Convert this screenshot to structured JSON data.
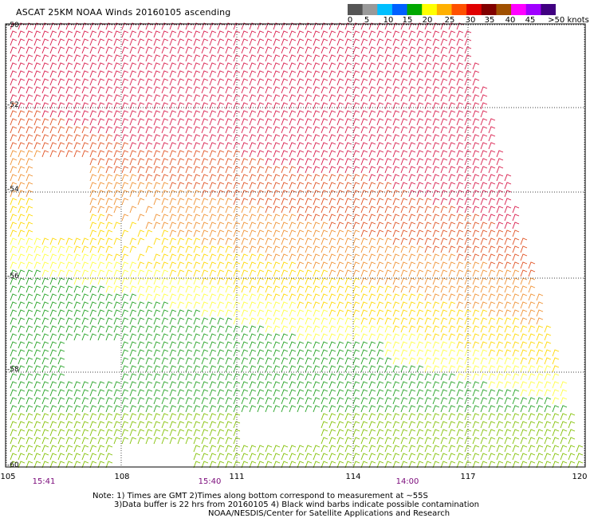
{
  "title": "ASCAT 25KM NOAA Winds 20160105 ascending",
  "legend": {
    "units": "knots",
    "ticks": [
      "0",
      "5",
      "10",
      "15",
      "20",
      "25",
      "30",
      "35",
      "40",
      "45",
      ">50 knots"
    ],
    "colors": [
      "#555555",
      "#999999",
      "#00bfff",
      "#0060ff",
      "#00a800",
      "#ffff00",
      "#ffb000",
      "#ff5000",
      "#e00000",
      "#800000",
      "#a05000",
      "#ff00ff",
      "#a000ff",
      "#400080"
    ]
  },
  "map": {
    "lat_labels": [
      "-50",
      "-52",
      "-54",
      "-56",
      "-58",
      "-60"
    ],
    "lon_labels": [
      "105",
      "108",
      "111",
      "114",
      "117",
      "120"
    ],
    "time_labels": [
      "15:41",
      "15:40",
      "14:00"
    ],
    "grid": "dotted",
    "swath_color_zones": [
      "#d81848",
      "#e05020",
      "#f09030",
      "#ffd800",
      "#ffff40",
      "#80c000",
      "#20a020"
    ]
  },
  "notes": {
    "line1": "Note: 1) Times are GMT 2)Times along bottom correspond to measurement at ~55S",
    "line2": "3)Data buffer is 22 hrs from 20160105 4) Black wind barbs indicate possible contamination",
    "line3": "NOAA/NESDIS/Center for Satellite Applications and Research"
  }
}
